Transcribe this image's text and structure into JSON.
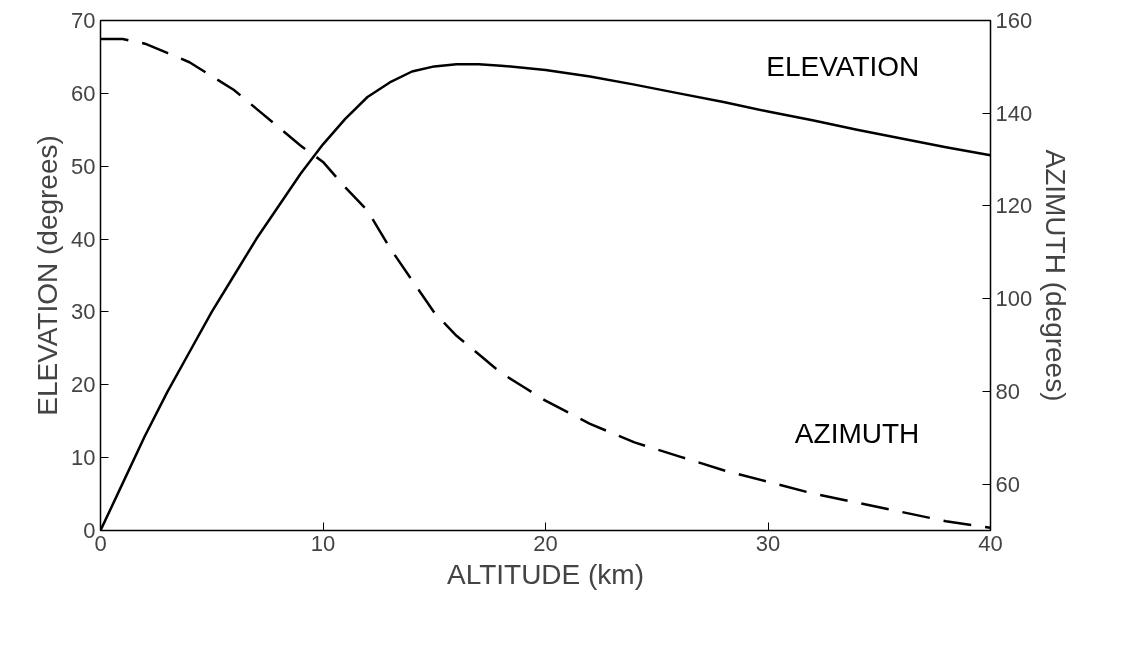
{
  "chart_data": {
    "type": "line",
    "xlabel": "ALTITUDE (km)",
    "ylabel": "ELEVATION (degrees)",
    "y2label": "AZIMUTH (degrees)",
    "xlim": [
      0,
      40
    ],
    "xticks": [
      0,
      10,
      20,
      30,
      40
    ],
    "ylim": [
      0,
      70
    ],
    "yticks": [
      0,
      10,
      20,
      30,
      40,
      50,
      60,
      70
    ],
    "y2lim": [
      50,
      160
    ],
    "y2ticks": [
      60,
      80,
      100,
      120,
      140,
      160
    ],
    "grid": false,
    "series": [
      {
        "name": "ELEVATION",
        "color": "#000000",
        "line_style": "solid",
        "x": [
          0,
          1,
          2,
          3,
          4,
          5,
          6,
          7,
          8,
          9,
          10,
          11,
          12,
          13,
          14,
          15,
          16,
          17,
          18,
          20,
          22,
          24,
          26,
          28,
          30,
          32,
          34,
          36,
          38,
          40
        ],
        "values": [
          0,
          6.5,
          13,
          19,
          24.5,
          30,
          35,
          40,
          44.5,
          49,
          53,
          56.5,
          59.5,
          61.5,
          63,
          63.7,
          64,
          64,
          63.8,
          63.2,
          62.3,
          61.2,
          60,
          58.8,
          57.5,
          56.3,
          55,
          53.8,
          52.6,
          51.5
        ]
      },
      {
        "name": "AZIMUTH",
        "color": "#000000",
        "line_style": "dashed",
        "axis": "y2",
        "x": [
          0,
          1,
          2,
          3,
          4,
          5,
          6,
          7,
          8,
          9,
          10,
          11,
          12,
          13,
          14,
          15,
          16,
          17,
          18,
          19,
          20,
          22,
          24,
          26,
          28,
          30,
          32,
          34,
          36,
          38,
          40
        ],
        "values": [
          156,
          156,
          155,
          153,
          151,
          148,
          145,
          141,
          137,
          133,
          129.5,
          124,
          119,
          111,
          104,
          97,
          92,
          88,
          84,
          81,
          78,
          73,
          69,
          66,
          63,
          60.5,
          58,
          56,
          54,
          52,
          50.6
        ]
      }
    ]
  }
}
